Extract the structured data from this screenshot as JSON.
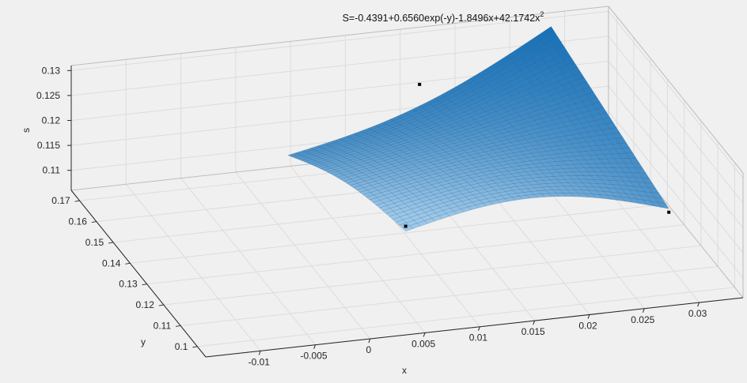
{
  "chart_data": {
    "type": "surface",
    "title": {
      "base": "S=-0.4391+0.6560exp(-y)-1.8496x+42.1742x",
      "superscript": "2"
    },
    "equation": {
      "c0": -0.4391,
      "c_expy": 0.656,
      "c_x": -1.8496,
      "c_x2": 42.1742
    },
    "xlabel": "x",
    "ylabel": "y",
    "zlabel": "s",
    "xlim": [
      -0.015,
      0.034
    ],
    "ylim": [
      0.095,
      0.175
    ],
    "zlim": [
      0.106,
      0.131
    ],
    "surface_x_range": [
      0.004,
      0.028
    ],
    "surface_y_range": [
      0.1,
      0.17
    ],
    "x_ticks": [
      {
        "value": -0.01,
        "label": "-0.01"
      },
      {
        "value": -0.005,
        "label": "-0.005"
      },
      {
        "value": 0,
        "label": "0"
      },
      {
        "value": 0.005,
        "label": "0.005"
      },
      {
        "value": 0.01,
        "label": "0.01"
      },
      {
        "value": 0.015,
        "label": "0.015"
      },
      {
        "value": 0.02,
        "label": "0.02"
      },
      {
        "value": 0.025,
        "label": "0.025"
      },
      {
        "value": 0.03,
        "label": "0.03"
      }
    ],
    "y_ticks": [
      {
        "value": 0.1,
        "label": "0.1"
      },
      {
        "value": 0.11,
        "label": "0.11"
      },
      {
        "value": 0.12,
        "label": "0.12"
      },
      {
        "value": 0.13,
        "label": "0.13"
      },
      {
        "value": 0.14,
        "label": "0.14"
      },
      {
        "value": 0.15,
        "label": "0.15"
      },
      {
        "value": 0.16,
        "label": "0.16"
      },
      {
        "value": 0.17,
        "label": "0.17"
      }
    ],
    "z_ticks": [
      {
        "value": 0.11,
        "label": "0.11"
      },
      {
        "value": 0.115,
        "label": "0.115"
      },
      {
        "value": 0.12,
        "label": "0.12"
      },
      {
        "value": 0.125,
        "label": "0.125"
      },
      {
        "value": 0.13,
        "label": "0.13"
      }
    ],
    "points": [
      {
        "x": 0.004,
        "y": 0.1,
        "s": 0.1255
      },
      {
        "x": 0.016,
        "y": 0.17,
        "s": 0.1218
      },
      {
        "x": 0.028,
        "y": 0.1,
        "s": 0.1225
      }
    ],
    "grid": true,
    "colors": {
      "surface_light": "#9cc8ea",
      "surface_dark": "#1a72b8",
      "mesh": "#1b3f5e",
      "background": "#f0f0f0",
      "axes": "#262626",
      "grid": "#dcdcdc",
      "points": "#000000"
    }
  }
}
